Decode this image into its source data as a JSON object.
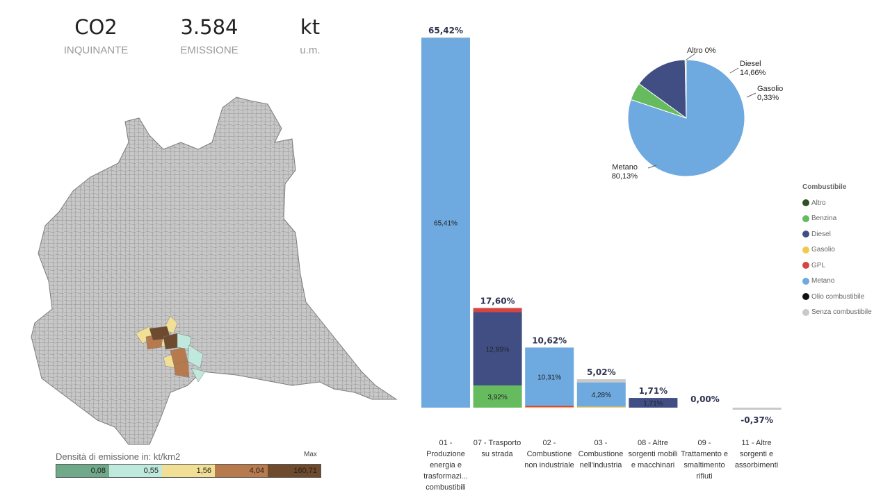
{
  "kpis": [
    {
      "value": "CO2",
      "label": "INQUINANTE"
    },
    {
      "value": "3.584",
      "label": "EMISSIONE"
    },
    {
      "value": "kt",
      "label": "u.m."
    }
  ],
  "map_legend": {
    "title": "Densità di emissione in: kt/km2",
    "max_label": "Max",
    "bins": [
      {
        "value": "0,08",
        "color": "#6fa98a"
      },
      {
        "value": "0,55",
        "color": "#bfe9dc"
      },
      {
        "value": "1,56",
        "color": "#f0df94"
      },
      {
        "value": "4,04",
        "color": "#b77a4c"
      },
      {
        "value": "160,71",
        "color": "#6e4a2e"
      }
    ]
  },
  "colors": {
    "Altro": "#2f4f24",
    "Benzina": "#66bb5e",
    "Diesel": "#414e84",
    "Gasolio": "#f2c94c",
    "GPL": "#d64541",
    "Metano": "#6ea9e0",
    "Olio combustibile": "#111111",
    "Senza combustibile": "#c9c9c9"
  },
  "chart_data": [
    {
      "type": "bar",
      "stacked": true,
      "categories": [
        "01 - Produzione energia e trasformazi... combustibili",
        "07 - Trasporto su strada",
        "02 - Combustione non industriale",
        "03 - Combustione nell'industria",
        "08 - Altre sorgenti mobili e macchinari",
        "09 - Trattamento e smaltimento rifiuti",
        "11 - Altre sorgenti e assorbimenti"
      ],
      "totals": [
        65.42,
        17.6,
        10.62,
        5.02,
        1.71,
        0.0,
        -0.37
      ],
      "total_labels": [
        "65,42%",
        "17,60%",
        "10,62%",
        "5,02%",
        "1,71%",
        "0,00%",
        "-0,37%"
      ],
      "series": [
        {
          "name": "Benzina",
          "values": [
            0,
            3.92,
            0,
            0,
            0,
            0,
            0
          ]
        },
        {
          "name": "Diesel",
          "values": [
            0,
            12.95,
            0,
            0,
            1.71,
            0,
            0
          ]
        },
        {
          "name": "Gasolio",
          "values": [
            0,
            0,
            0.08,
            0.18,
            0,
            0,
            0
          ]
        },
        {
          "name": "GPL",
          "values": [
            0,
            0.73,
            0.23,
            0,
            0,
            0,
            0
          ]
        },
        {
          "name": "Metano",
          "values": [
            65.41,
            0,
            10.31,
            4.28,
            0,
            0,
            0
          ]
        },
        {
          "name": "Senza combustibile",
          "values": [
            0.01,
            0,
            0,
            0.56,
            0,
            0,
            -0.37
          ]
        }
      ],
      "segment_labels": [
        {
          "category": 0,
          "series": "Metano",
          "label": "65,41%"
        },
        {
          "category": 1,
          "series": "Benzina",
          "label": "3,92%"
        },
        {
          "category": 1,
          "series": "Diesel",
          "label": "12,95%"
        },
        {
          "category": 2,
          "series": "Metano",
          "label": "10,31%"
        },
        {
          "category": 3,
          "series": "Metano",
          "label": "4,28%"
        },
        {
          "category": 4,
          "series": "Diesel",
          "label": "1,71%"
        }
      ]
    },
    {
      "type": "pie",
      "slices": [
        {
          "name": "Metano",
          "value": 80.13,
          "label": "Metano\n80,13%"
        },
        {
          "name": "Benzina",
          "value": 4.88,
          "label": ""
        },
        {
          "name": "Diesel",
          "value": 14.66,
          "label": "Diesel\n14,66%"
        },
        {
          "name": "Gasolio",
          "value": 0.33,
          "label": "Gasolio\n0,33%"
        },
        {
          "name": "Altro",
          "value": 0,
          "label": "Altro 0%"
        }
      ],
      "legend": {
        "title": "Combustibile",
        "position": "right",
        "items": [
          "Altro",
          "Benzina",
          "Diesel",
          "Gasolio",
          "GPL",
          "Metano",
          "Olio combustibile",
          "Senza combustibile"
        ]
      }
    }
  ]
}
